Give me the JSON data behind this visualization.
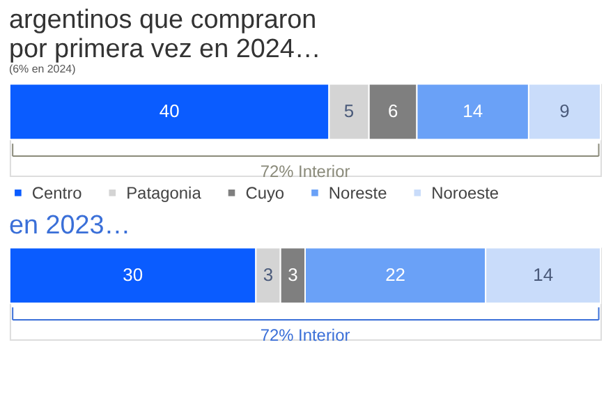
{
  "chart_data": [
    {
      "type": "bar",
      "orientation": "horizontal",
      "stacked": true,
      "title": "argentinos que compraron\npor primera vez en 2024…",
      "subtitle": "(6% en 2024)",
      "categories": [
        null
      ],
      "series": [
        {
          "name": "Centro",
          "color": "#0a5cff",
          "values": [
            40
          ]
        },
        {
          "name": "Patagonia",
          "color": "#d4d4d4",
          "values": [
            5
          ]
        },
        {
          "name": "Cuyo",
          "color": "#7f7f7f",
          "values": [
            6
          ]
        },
        {
          "name": "Noreste",
          "color": "#6aa1f7",
          "values": [
            14
          ]
        },
        {
          "name": "Noroeste",
          "color": "#c9dcfa",
          "values": [
            9
          ]
        }
      ],
      "xlim": [
        0,
        74
      ],
      "tick_labels": false,
      "data_labels": true,
      "legend": "bottom",
      "annotations": [
        "72% Interior"
      ]
    },
    {
      "type": "bar",
      "orientation": "horizontal",
      "stacked": true,
      "title": "en 2023…",
      "categories": [
        null
      ],
      "series": [
        {
          "color": "#0a5cff",
          "values": [
            30
          ]
        },
        {
          "color": "#d4d4d4",
          "values": [
            3
          ]
        },
        {
          "color": "#7f7f7f",
          "values": [
            3
          ]
        },
        {
          "color": "#6aa1f7",
          "values": [
            22
          ]
        },
        {
          "color": "#c9dcfa",
          "values": [
            14
          ]
        }
      ],
      "xlim": [
        0,
        72
      ],
      "tick_labels": false,
      "data_labels": true,
      "annotations": [
        "72% Interior"
      ]
    }
  ]
}
